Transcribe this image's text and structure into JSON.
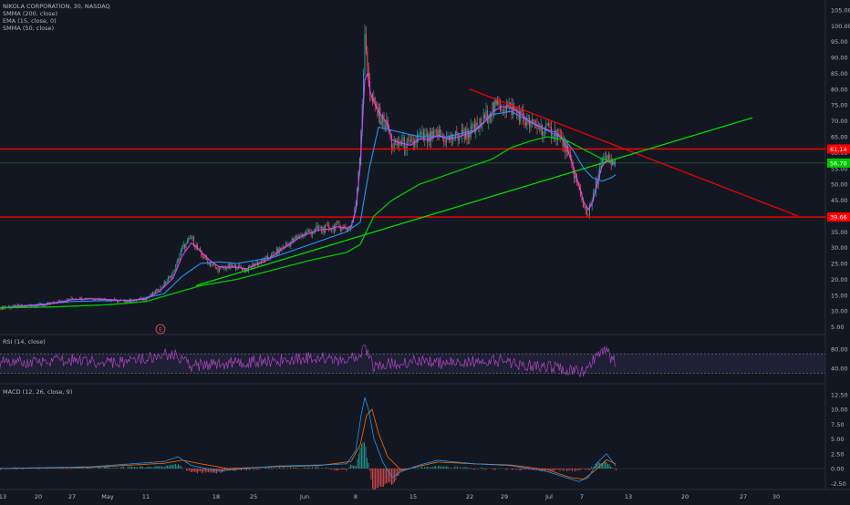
{
  "header": {
    "symbol_line": "NIKOLA CORPORATION, 30, NASDAQ",
    "indicators": [
      "SMMA (200, close)",
      "EMA (15, close, 0)",
      "SMMA (50, close)"
    ]
  },
  "panes": {
    "rsi_label": "RSI (14, close)",
    "macd_label": "MACD (12, 26, close, 9)"
  },
  "colors": {
    "background": "#131722",
    "candle_up": "#26a69a",
    "candle_down": "#ef5350",
    "smma200": "#00c800",
    "ema15": "#2196f3",
    "smma50": "#e040fb",
    "resistance": "#ff0000",
    "trendline": "#00e600",
    "rsi": "#ab47bc",
    "macd": "#2196f3",
    "signal": "#ff6d00",
    "axis_text": "#b2b5be"
  },
  "earnings_marker": "E",
  "chart_data": [
    {
      "type": "line",
      "title": "NIKOLA CORPORATION, 30, NASDAQ",
      "x_ticks": [
        "13",
        "20",
        "27",
        "May",
        "11",
        "18",
        "25",
        "Jun",
        "8",
        "15",
        "22",
        "29",
        "Jul",
        "7",
        "13",
        "20",
        "27",
        "30"
      ],
      "y_ticks": [
        5,
        10,
        15,
        20,
        25,
        30,
        35,
        40,
        45,
        50,
        55,
        60,
        65,
        70,
        75,
        80,
        85,
        90,
        95,
        100,
        105
      ],
      "ylim": [
        2,
        107
      ],
      "price_labels": {
        "resistance": "61.14",
        "last": "56.70",
        "support": "39.66"
      },
      "horizontal_levels": [
        61.14,
        39.66
      ],
      "last_price": 56.7,
      "price_series": {
        "name": "Price",
        "x": [
          0,
          20,
          50,
          80,
          100,
          120,
          140,
          160,
          175,
          190,
          200,
          210,
          220,
          230,
          240,
          250,
          260,
          270,
          280,
          290,
          300,
          310,
          320,
          330,
          340,
          350,
          360,
          370,
          380,
          385,
          390,
          395,
          400,
          403,
          406,
          410,
          415,
          420,
          425,
          430,
          440,
          450,
          460,
          470,
          480,
          490,
          500,
          510,
          520,
          530,
          540,
          550,
          560,
          570,
          580,
          590,
          600,
          610,
          615,
          620,
          625,
          630,
          635,
          640,
          645,
          650,
          655,
          660,
          665,
          670,
          675
        ],
        "values": [
          11,
          11.5,
          12,
          14,
          14,
          13.5,
          13,
          14,
          17,
          22,
          30,
          33,
          28,
          25,
          23,
          24,
          24,
          23,
          25,
          26,
          28,
          30,
          32,
          34,
          35,
          36,
          36,
          37,
          36,
          37,
          43,
          62,
          95,
          88,
          78,
          75,
          72,
          70,
          68,
          62,
          63,
          62,
          65,
          64,
          66,
          64,
          65,
          66,
          67,
          70,
          74,
          75,
          74,
          72,
          69,
          68,
          67,
          66,
          64,
          62,
          57,
          53,
          48,
          43,
          41,
          45,
          52,
          57,
          58,
          57,
          56
        ]
      },
      "series": [
        {
          "name": "SMMA (200, close)",
          "x": [
            0,
            60,
            120,
            160,
            190,
            220,
            260,
            300,
            340,
            380,
            395,
            410,
            430,
            460,
            490,
            520,
            540,
            560,
            580,
            600,
            620,
            640,
            660,
            675
          ],
          "values": [
            11,
            11.3,
            12,
            13,
            15.5,
            18,
            20,
            23,
            26,
            28.5,
            31,
            40,
            45,
            50,
            53,
            56,
            58,
            61.5,
            63.5,
            65,
            64,
            61,
            58,
            57
          ]
        },
        {
          "name": "EMA (15, close, 0)",
          "x": [
            0,
            20,
            50,
            80,
            100,
            120,
            140,
            160,
            175,
            190,
            200,
            210,
            220,
            230,
            240,
            250,
            260,
            270,
            280,
            290,
            300,
            310,
            320,
            330,
            340,
            350,
            360,
            370,
            380,
            385,
            390,
            395,
            400,
            403,
            406,
            410,
            415,
            420,
            425,
            430,
            440,
            450,
            460,
            470,
            480,
            490,
            500,
            510,
            520,
            530,
            540,
            550,
            560,
            570,
            580,
            590,
            600,
            610,
            615,
            620,
            625,
            630,
            635,
            640,
            645,
            650,
            655,
            660,
            665,
            670,
            675
          ],
          "values": [
            11,
            11.4,
            12,
            13.6,
            13.9,
            13.6,
            13.2,
            13.8,
            16.2,
            20.5,
            27.5,
            31.5,
            28.8,
            26,
            24,
            23.8,
            23.8,
            23.3,
            24.5,
            25.6,
            27.5,
            29.6,
            31.6,
            33.5,
            34.6,
            35.6,
            35.8,
            36.6,
            36.2,
            36.7,
            41.5,
            56,
            83,
            85,
            79,
            76,
            73,
            71,
            69,
            64,
            63,
            62.3,
            64.3,
            64.1,
            65.5,
            64.4,
            64.8,
            65.7,
            66.7,
            69.2,
            72.8,
            74.5,
            74.1,
            72.6,
            69.8,
            68.4,
            67.3,
            66.3,
            64.7,
            62.8,
            58.5,
            54.5,
            49.5,
            44.5,
            42,
            44.5,
            50.5,
            55.6,
            57.4,
            57,
            56.3
          ]
        },
        {
          "name": "SMMA (50, close)",
          "x": [
            0,
            80,
            150,
            180,
            200,
            220,
            240,
            260,
            300,
            340,
            380,
            395,
            405,
            415,
            430,
            460,
            490,
            520,
            540,
            560,
            580,
            600,
            620,
            630,
            640,
            650,
            660,
            670,
            675
          ],
          "values": [
            11,
            13,
            13.5,
            15.5,
            21,
            25,
            25.5,
            25,
            27,
            31,
            35,
            38,
            55,
            68,
            67,
            65,
            65,
            67,
            72,
            73,
            70,
            67,
            64,
            60,
            55,
            52,
            51,
            52,
            53
          ]
        }
      ],
      "trendlines": {
        "resistance_line": {
          "x": [
            515,
            875
          ],
          "values": [
            80,
            40
          ]
        },
        "support_line": {
          "x": [
            215,
            825
          ],
          "values": [
            18,
            71
          ]
        }
      }
    },
    {
      "type": "line",
      "title": "RSI (14, close)",
      "y_ticks": [
        80.0,
        40.0
      ],
      "ylim": [
        10,
        110
      ],
      "band": [
        70,
        30
      ],
      "series": [
        {
          "name": "RSI",
          "x": [
            0,
            40,
            80,
            120,
            160,
            190,
            210,
            240,
            280,
            320,
            350,
            380,
            395,
            400,
            410,
            430,
            460,
            500,
            540,
            570,
            600,
            620,
            640,
            650,
            660,
            665,
            670,
            675
          ],
          "values": [
            55,
            52,
            58,
            50,
            60,
            72,
            45,
            50,
            55,
            58,
            62,
            55,
            72,
            85,
            40,
            50,
            55,
            50,
            58,
            48,
            45,
            38,
            32,
            55,
            75,
            82,
            60,
            55
          ]
        }
      ]
    },
    {
      "type": "line",
      "title": "MACD (12, 26, close, 9)",
      "y_ticks": [
        12.5,
        10.0,
        7.5,
        5.0,
        2.5,
        0.0,
        -2.5
      ],
      "ylim": [
        -4,
        14
      ],
      "series": [
        {
          "name": "MACD",
          "x": [
            0,
            100,
            180,
            195,
            210,
            240,
            300,
            350,
            380,
            390,
            396,
            400,
            404,
            410,
            420,
            430,
            440,
            460,
            480,
            520,
            560,
            600,
            620,
            635,
            645,
            655,
            665,
            675
          ],
          "values": [
            0,
            0.3,
            1.2,
            2,
            0.5,
            -0.4,
            0.4,
            0.6,
            0.8,
            3,
            9,
            12,
            10,
            5,
            1,
            -1.5,
            -0.5,
            0.6,
            1.4,
            0.8,
            0.5,
            -0.5,
            -1.5,
            -2.2,
            -1.5,
            1,
            2.5,
            0.5
          ]
        },
        {
          "name": "Signal",
          "x": [
            0,
            100,
            180,
            200,
            220,
            250,
            300,
            350,
            385,
            395,
            402,
            408,
            415,
            425,
            440,
            460,
            480,
            520,
            560,
            600,
            625,
            640,
            655,
            665,
            675
          ],
          "values": [
            0,
            0.2,
            0.9,
            1.4,
            0.8,
            0,
            0.3,
            0.5,
            1.2,
            4,
            9,
            10,
            6,
            2,
            -0.3,
            0.4,
            1.1,
            0.8,
            0.6,
            -0.2,
            -1.5,
            -1.8,
            0,
            1.5,
            0.8
          ]
        }
      ]
    }
  ]
}
